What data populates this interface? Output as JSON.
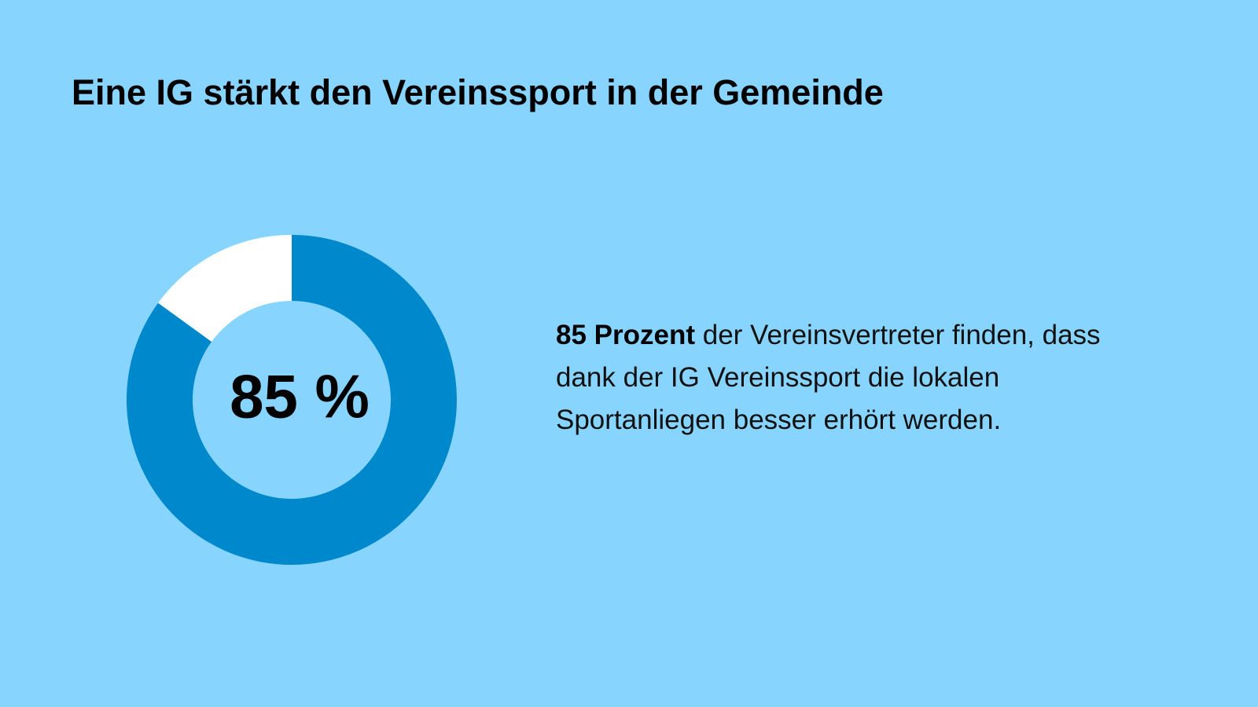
{
  "chart_data": {
    "type": "pie",
    "title": "Eine IG stärkt den Vereinssport in der Gemeinde",
    "values": [
      85,
      15
    ],
    "value_labels": [
      "85 %",
      null
    ],
    "colors": [
      "#0088cc",
      "#ffffff"
    ],
    "donut": true
  },
  "text": {
    "bold": "85 Prozent",
    "body": "der Vereinsvertreter finden, dass dank der IG Vereinssport die lokalen Sportanliegen besser erhört werden."
  }
}
